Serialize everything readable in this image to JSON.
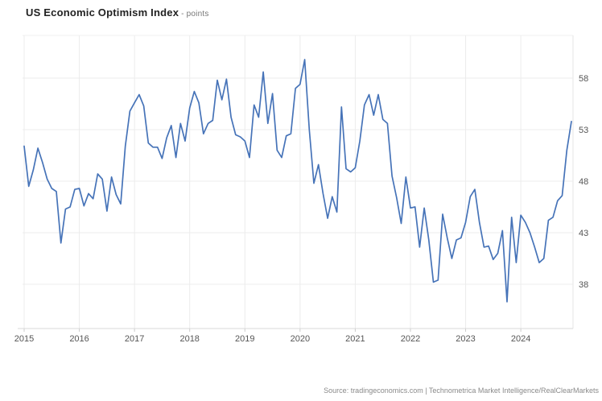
{
  "header": {
    "title": "US Economic Optimism Index",
    "subtitle_sep": " - ",
    "subtitle": "points"
  },
  "footer": {
    "source": "Source: tradingeconomics.com | Technometrica Market Intelligence/RealClearMarkets"
  },
  "colors": {
    "line": "#4673b8",
    "grid": "#ececec",
    "plot_top_border": "#f2f2f2",
    "plot_right_border": "#e6e6e6",
    "axis_line": "#d8d8d8",
    "tick_mark": "#cccccc",
    "tick_label": "#555555",
    "background": "#ffffff"
  },
  "chart_data": {
    "type": "line",
    "title": "US Economic Optimism Index",
    "ylabel": "",
    "xlabel": "",
    "unit": "points",
    "frequency": "monthly",
    "x_start": "2015-01",
    "x_end": "2024-12",
    "x_tick_labels": [
      "2015",
      "2016",
      "2017",
      "2018",
      "2019",
      "2020",
      "2021",
      "2022",
      "2023",
      "2024"
    ],
    "y_ticks": [
      38,
      43,
      48,
      53,
      58
    ],
    "ylim": [
      33.7,
      62.1
    ],
    "grid": true,
    "legend": false,
    "series": [
      {
        "name": "US Economic Optimism Index",
        "values": [
          51.4,
          47.5,
          49.1,
          51.2,
          49.8,
          48.2,
          47.3,
          47.0,
          42.0,
          45.3,
          45.5,
          47.2,
          47.3,
          45.6,
          46.8,
          46.3,
          48.7,
          48.2,
          45.1,
          48.4,
          46.7,
          45.8,
          51.4,
          54.8,
          55.6,
          56.4,
          55.3,
          51.7,
          51.3,
          51.3,
          50.2,
          52.2,
          53.4,
          50.3,
          53.6,
          51.9,
          55.1,
          56.7,
          55.6,
          52.6,
          53.6,
          53.9,
          57.8,
          55.9,
          57.9,
          54.2,
          52.5,
          52.3,
          51.9,
          50.3,
          55.4,
          54.2,
          58.6,
          53.6,
          56.5,
          51.0,
          50.3,
          52.4,
          52.6,
          57.0,
          57.4,
          59.8,
          53.0,
          47.8,
          49.6,
          46.8,
          44.4,
          46.5,
          45.0,
          55.2,
          49.2,
          48.9,
          49.3,
          51.9,
          55.4,
          56.4,
          54.4,
          56.4,
          54.0,
          53.6,
          48.5,
          46.4,
          43.9,
          48.4,
          45.4,
          45.5,
          41.6,
          45.4,
          42.3,
          38.2,
          38.4,
          44.8,
          42.5,
          40.5,
          42.3,
          42.5,
          44.0,
          46.5,
          47.2,
          44.0,
          41.6,
          41.7,
          40.4,
          41.0,
          43.2,
          36.3,
          44.5,
          40.1,
          44.7,
          44.0,
          43.0,
          41.6,
          40.1,
          40.5,
          44.2,
          44.5,
          46.1,
          46.6,
          51.0,
          53.8
        ]
      }
    ]
  }
}
